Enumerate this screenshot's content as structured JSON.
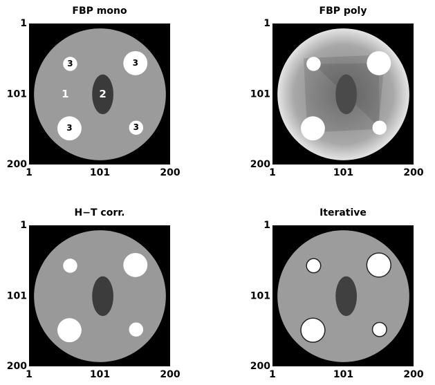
{
  "panels": [
    {
      "title": "FBP mono",
      "xticks": [
        1,
        101,
        200
      ],
      "yticks": [
        1,
        101,
        200
      ],
      "labels": [
        "1",
        "2",
        "3",
        "3",
        "3",
        "3"
      ]
    },
    {
      "title": "FBP poly",
      "xticks": [
        1,
        101,
        200
      ],
      "yticks": [
        1,
        101,
        200
      ]
    },
    {
      "title": "H−T corr.",
      "xticks": [
        1,
        101,
        200
      ],
      "yticks": [
        1,
        101,
        200
      ]
    },
    {
      "title": "Iterative",
      "xticks": [
        1,
        101,
        200
      ],
      "yticks": [
        1,
        101,
        200
      ]
    }
  ]
}
